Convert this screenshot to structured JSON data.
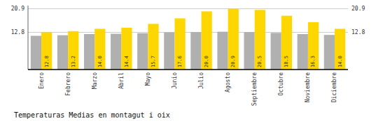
{
  "chart_data": {
    "type": "bar",
    "title": "Temperaturas Medias en montagut i oix",
    "categories": [
      "Enero",
      "Febrero",
      "Marzo",
      "Abril",
      "Mayo",
      "Junio",
      "Julio",
      "Agosto",
      "Septiembre",
      "Octubre",
      "Noviembre",
      "Diciembre"
    ],
    "series": [
      {
        "color": "#B0B0B0",
        "values": [
          11.6,
          11.8,
          12.2,
          12.3,
          12.5,
          12.8,
          12.9,
          13.0,
          12.9,
          12.6,
          12.2,
          11.9
        ]
      },
      {
        "color": "#FFD700",
        "values": [
          12.8,
          13.2,
          14.0,
          14.4,
          15.7,
          17.6,
          20.0,
          20.9,
          20.5,
          18.5,
          16.3,
          14.0
        ],
        "data_labels": true,
        "value_labels": [
          "12.8",
          "13.2",
          "14.0",
          "14.4",
          "15.7",
          "17.6",
          "20.0",
          "20.9",
          "20.5",
          "18.5",
          "16.3",
          "14.0"
        ]
      }
    ],
    "ylim": [
      0,
      22
    ],
    "yticks": [
      12.8,
      20.9
    ],
    "y2lim": [
      0,
      22
    ],
    "y2ticks": [
      12.8,
      20.9
    ],
    "grid": true
  }
}
